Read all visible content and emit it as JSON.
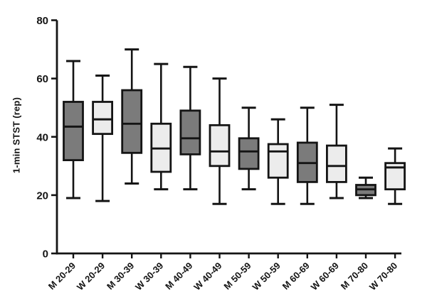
{
  "chart_data": {
    "type": "box",
    "title": "",
    "xlabel": "",
    "ylabel": "1-min STST (rep)",
    "ylim": [
      0,
      80
    ],
    "yticks": [
      0,
      20,
      40,
      60,
      80
    ],
    "grid": false,
    "legend": null,
    "categories": [
      "M 20-29",
      "W 20-29",
      "M 30-39",
      "W 30-39",
      "M 40-49",
      "W 40-49",
      "M 50-59",
      "W 50-59",
      "M 60-69",
      "W 60-69",
      "M 70-80",
      "W 70-80"
    ],
    "boxes": [
      {
        "label": "M 20-29",
        "group": "men",
        "min": 19,
        "q1": 32,
        "median": 43.5,
        "q3": 52,
        "max": 66
      },
      {
        "label": "W 20-29",
        "group": "women",
        "min": 18,
        "q1": 41,
        "median": 46,
        "q3": 52,
        "max": 61
      },
      {
        "label": "M 30-39",
        "group": "men",
        "min": 24,
        "q1": 34.5,
        "median": 44.5,
        "q3": 56,
        "max": 70
      },
      {
        "label": "W 30-39",
        "group": "women",
        "min": 22,
        "q1": 28,
        "median": 36,
        "q3": 44.5,
        "max": 65
      },
      {
        "label": "M 40-49",
        "group": "men",
        "min": 22,
        "q1": 34,
        "median": 39.5,
        "q3": 49,
        "max": 64
      },
      {
        "label": "W 40-49",
        "group": "women",
        "min": 17,
        "q1": 30,
        "median": 35,
        "q3": 44,
        "max": 60
      },
      {
        "label": "M 50-59",
        "group": "men",
        "min": 22,
        "q1": 29,
        "median": 35,
        "q3": 39.5,
        "max": 50
      },
      {
        "label": "W 50-59",
        "group": "women",
        "min": 17,
        "q1": 26,
        "median": 35,
        "q3": 37.5,
        "max": 46
      },
      {
        "label": "M 60-69",
        "group": "men",
        "min": 17,
        "q1": 24.5,
        "median": 31,
        "q3": 38,
        "max": 50
      },
      {
        "label": "W 60-69",
        "group": "women",
        "min": 19,
        "q1": 24.5,
        "median": 30,
        "q3": 37,
        "max": 51
      },
      {
        "label": "M 70-80",
        "group": "men",
        "min": 19,
        "q1": 20,
        "median": 22,
        "q3": 23.5,
        "max": 26
      },
      {
        "label": "W 70-80",
        "group": "women",
        "min": 17,
        "q1": 22,
        "median": 29.5,
        "q3": 31,
        "max": 36
      }
    ],
    "group_fills": {
      "men": "#7b7b7b",
      "women": "#ececec"
    }
  },
  "colors": {
    "background": "#ffffff",
    "axis": "#141414",
    "box_stroke": "#141414",
    "text": "#141414"
  }
}
